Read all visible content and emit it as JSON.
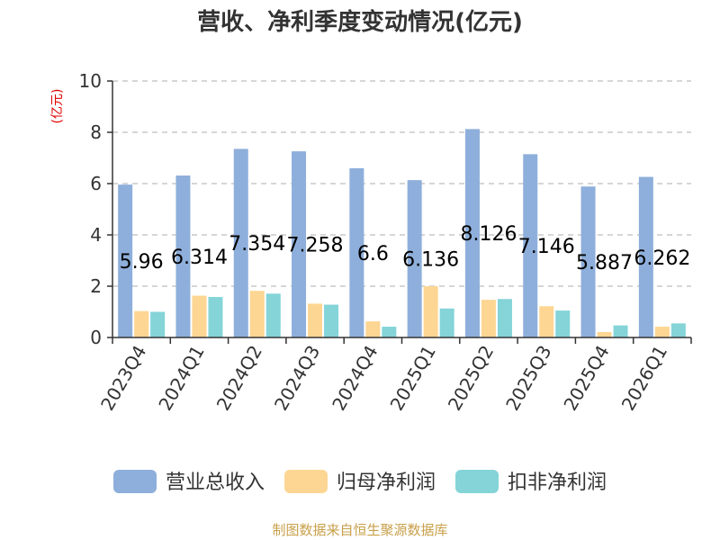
{
  "chart_data": {
    "type": "bar",
    "title": "营收、净利季度变动情况(亿元)",
    "ylabel": "(亿元)",
    "xlabel": "",
    "ylim": [
      0,
      10
    ],
    "yticks": [
      0,
      2,
      4,
      6,
      8,
      10
    ],
    "grid": true,
    "legend_position": "bottom",
    "categories": [
      "2023Q4",
      "2024Q1",
      "2024Q2",
      "2024Q3",
      "2024Q4",
      "2025Q1",
      "2025Q2",
      "2025Q3",
      "2025Q4",
      "2026Q1"
    ],
    "series": [
      {
        "name": "营业总收入",
        "color": "#8eafdb",
        "values": [
          5.96,
          6.314,
          7.354,
          7.258,
          6.6,
          6.136,
          8.126,
          7.146,
          5.887,
          6.262
        ],
        "labels": [
          "5.96",
          "6.314",
          "7.354",
          "7.258",
          "6.6",
          "6.136",
          "8.126",
          "7.146",
          "5.887",
          "6.262"
        ]
      },
      {
        "name": "归母净利润",
        "color": "#fdd694",
        "values": [
          1.03,
          1.63,
          1.82,
          1.32,
          0.63,
          2.0,
          1.47,
          1.22,
          0.21,
          0.42
        ]
      },
      {
        "name": "扣非净利润",
        "color": "#84d4d8",
        "values": [
          1.0,
          1.58,
          1.71,
          1.28,
          0.42,
          1.13,
          1.5,
          1.05,
          0.47,
          0.55
        ]
      }
    ],
    "source": "制图数据来自恒生聚源数据库"
  }
}
